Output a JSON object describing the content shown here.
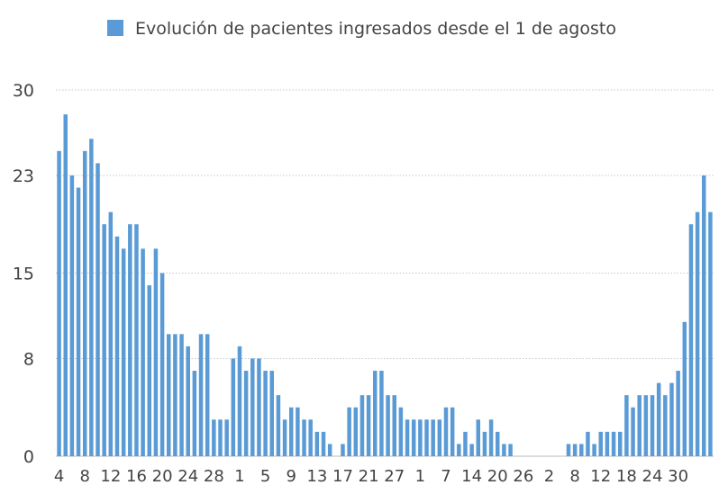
{
  "chart_data": {
    "type": "bar",
    "series": [
      {
        "name": "Evolución de pacientes ingresados desde el 1 de agosto",
        "color": "#5b9bd5",
        "values": [
          25,
          28,
          23,
          22,
          25,
          26,
          24,
          19,
          20,
          18,
          17,
          19,
          19,
          17,
          14,
          17,
          15,
          10,
          10,
          10,
          9,
          7,
          10,
          10,
          3,
          3,
          3,
          8,
          9,
          7,
          8,
          8,
          7,
          7,
          5,
          3,
          4,
          4,
          3,
          3,
          2,
          2,
          1,
          null,
          1,
          4,
          4,
          5,
          5,
          7,
          7,
          5,
          5,
          4,
          3,
          3,
          3,
          3,
          3,
          3,
          4,
          4,
          1,
          2,
          1,
          3,
          2,
          3,
          2,
          1,
          1,
          null,
          null,
          null,
          null,
          null,
          null,
          null,
          null,
          1,
          1,
          1,
          2,
          1,
          2,
          2,
          2,
          2,
          5,
          4,
          5,
          5,
          5,
          6,
          5,
          6,
          7,
          11,
          19,
          20,
          23,
          20
        ]
      }
    ],
    "x_tick_labels": [
      "4",
      "8",
      "12",
      "16",
      "20",
      "24",
      "28",
      "1",
      "5",
      "9",
      "13",
      "17",
      "21",
      "27",
      "1",
      "7",
      "14",
      "20",
      "26",
      "2",
      "8",
      "12",
      "18",
      "24",
      "30"
    ],
    "y_ticks": [
      "0",
      "8",
      "15",
      "23",
      "30"
    ],
    "ylim": [
      0,
      30
    ],
    "grid": true,
    "legend_position": "top"
  }
}
